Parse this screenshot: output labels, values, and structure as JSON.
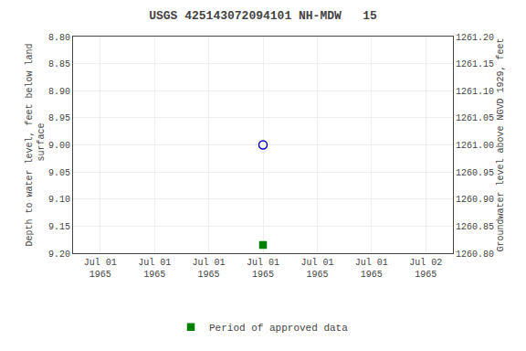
{
  "chart_data": {
    "type": "scatter",
    "title": "USGS 425143072094101 NH-MDW   15",
    "y_label": "Depth to water level, feet below land\n surface",
    "y2_label": "Groundwater level above NGVD 1929, feet",
    "categories": [
      "Jul 01\n1965",
      "Jul 01\n1965",
      "Jul 01\n1965",
      "Jul 01\n1965",
      "Jul 01\n1965",
      "Jul 01\n1965",
      "Jul 02\n1965"
    ],
    "series": [
      {
        "color": "#0000cc",
        "marker": "open circle",
        "values": [
          null,
          null,
          null,
          9.0,
          null,
          null,
          null
        ]
      },
      {
        "name": "Period of approved data",
        "color": "#008000",
        "marker": "square",
        "values": [
          null,
          null,
          null,
          9.185,
          null,
          null,
          null
        ]
      }
    ],
    "ylim": [
      8.8,
      9.2
    ],
    "yticks": [
      {
        "value": 8.8,
        "label": "8.80"
      },
      {
        "value": 8.85,
        "label": "8.85"
      },
      {
        "value": 8.9,
        "label": "8.90"
      },
      {
        "value": 8.95,
        "label": "8.95"
      },
      {
        "value": 9.0,
        "label": "9.00"
      },
      {
        "value": 9.05,
        "label": "9.05"
      },
      {
        "value": 9.1,
        "label": "9.10"
      },
      {
        "value": 9.15,
        "label": "9.15"
      },
      {
        "value": 9.2,
        "label": "9.20"
      }
    ],
    "y2lim": [
      1261.2,
      1260.8
    ],
    "y2ticks": [
      {
        "value": 1261.2,
        "label": "1261.20"
      },
      {
        "value": 1261.15,
        "label": "1261.15"
      },
      {
        "value": 1261.1,
        "label": "1261.10"
      },
      {
        "value": 1261.05,
        "label": "1261.05"
      },
      {
        "value": 1261.0,
        "label": "1261.00"
      },
      {
        "value": 1260.95,
        "label": "1260.95"
      },
      {
        "value": 1260.9,
        "label": "1260.90"
      },
      {
        "value": 1260.85,
        "label": "1260.85"
      },
      {
        "value": 1260.8,
        "label": "1260.80"
      }
    ],
    "grid": true,
    "legend": "bottom"
  }
}
